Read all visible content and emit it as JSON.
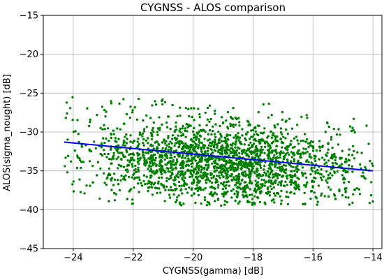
{
  "chart_data": {
    "type": "scatter",
    "title": "CYGNSS - ALOS comparison",
    "xlabel": "CYGNSS(gamma) [dB]",
    "ylabel": "ALOS(sigma_nought) [dB]",
    "xlim": [
      -25,
      -13.7
    ],
    "ylim": [
      -45,
      -15
    ],
    "xticks": [
      -24,
      -22,
      -20,
      -18,
      -16,
      -14
    ],
    "yticks": [
      -45,
      -40,
      -35,
      -30,
      -25,
      -20,
      -15
    ],
    "xtick_labels": [
      "−24",
      "−22",
      "−20",
      "−18",
      "−16",
      "−14"
    ],
    "ytick_labels": [
      "−45",
      "−40",
      "−35",
      "−30",
      "−25",
      "−20",
      "−15"
    ],
    "grid": true,
    "scatter_color": "#008000",
    "scatter_point_count": 2200,
    "scatter_x_range": [
      -24.3,
      -14.0
    ],
    "scatter_y_range": [
      -39.5,
      -24.8
    ],
    "scatter_density_peak": {
      "x": -19,
      "y": -34
    },
    "fit_line": {
      "color": "#0000ff",
      "x": [
        -24.3,
        -14.0
      ],
      "y": [
        -31.3,
        -35.0
      ]
    }
  }
}
